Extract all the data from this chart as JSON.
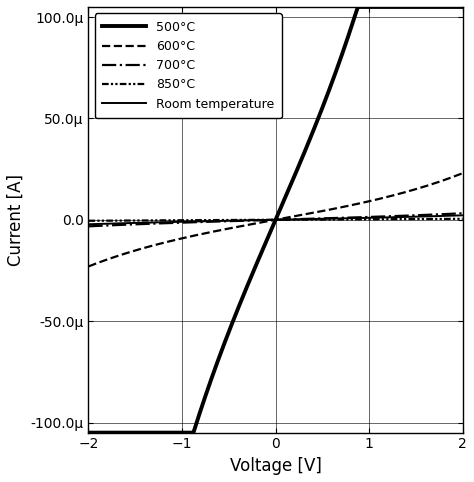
{
  "title": "",
  "xlabel": "Voltage [V]",
  "ylabel": "Current [A]",
  "xlim": [
    -2,
    2
  ],
  "ylim": [
    -0.000105,
    0.000105
  ],
  "yticks": [
    -0.0001,
    -5e-05,
    0.0,
    5e-05,
    0.0001
  ],
  "xticks": [
    -2,
    -1,
    0,
    1,
    2
  ],
  "curves": [
    {
      "label": "500°C",
      "Is": 5.5e-05,
      "n": 40.0,
      "linestyle": "solid",
      "linewidth": 2.8,
      "color": "black"
    },
    {
      "label": "600°C",
      "Is": 6e-06,
      "n": 55.0,
      "linestyle": "dashed",
      "linewidth": 1.6,
      "color": "black"
    },
    {
      "label": "700°C",
      "Is": 1.2e-06,
      "n": 70.0,
      "linestyle": "dashdot",
      "linewidth": 1.6,
      "color": "black"
    },
    {
      "label": "850°C",
      "Is": 2.5e-07,
      "n": 90.0,
      "linestyle": "dashdotdot",
      "linewidth": 1.6,
      "color": "black"
    },
    {
      "label": "Room temperature",
      "Is": 9e-07,
      "n": 75.0,
      "linestyle": "solid",
      "linewidth": 1.4,
      "color": "black"
    }
  ],
  "legend_loc": "upper left",
  "grid": true
}
